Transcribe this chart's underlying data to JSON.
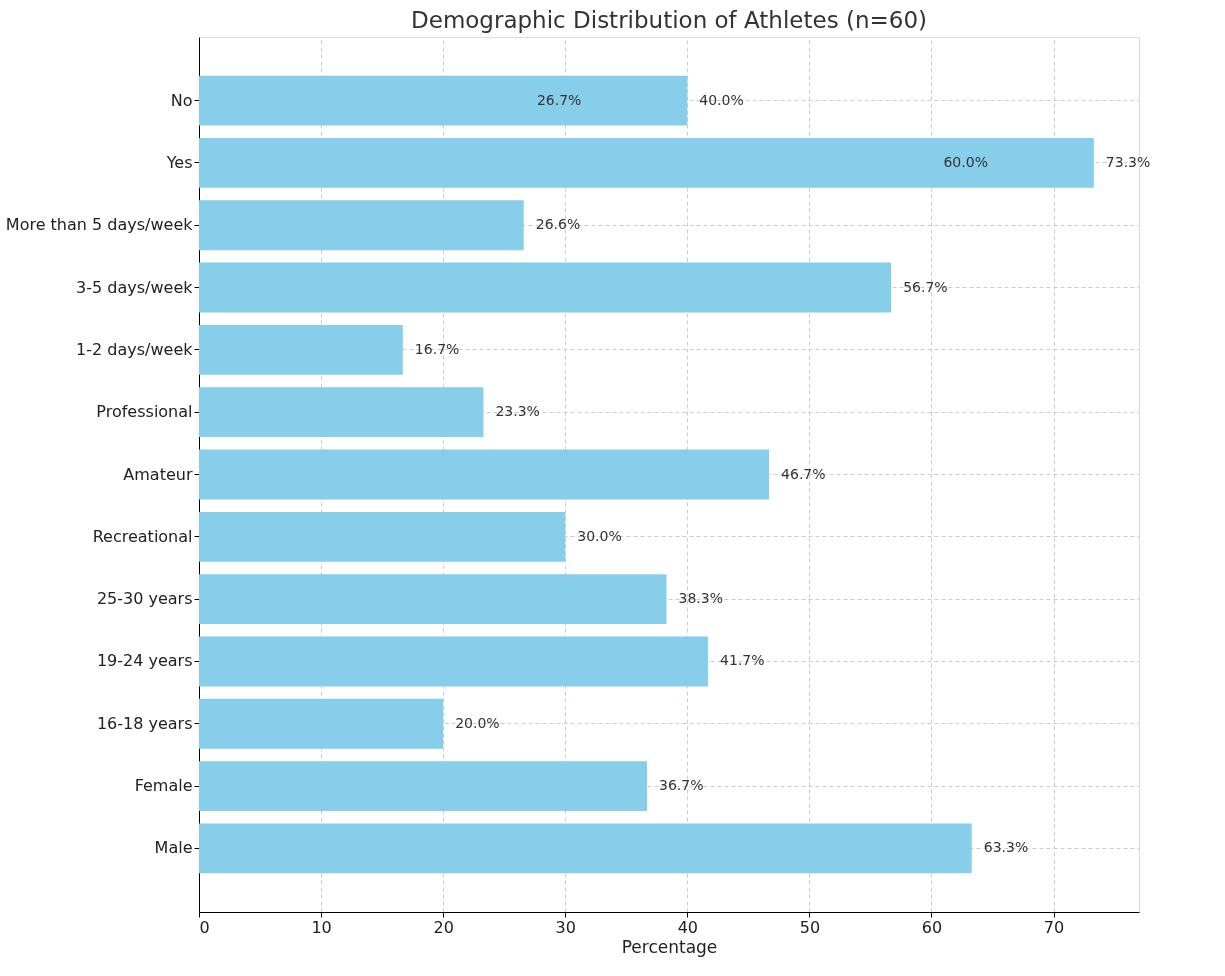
{
  "chart_data": {
    "type": "bar",
    "orientation": "horizontal",
    "title": "Demographic Distribution of Athletes (n=60)",
    "xlabel": "Percentage",
    "categories": [
      "No",
      "Yes",
      "More than 5 days/week",
      "3-5 days/week",
      "1-2 days/week",
      "Professional",
      "Amateur",
      "Recreational",
      "25-30 years",
      "19-24 years",
      "16-18 years",
      "Female",
      "Male"
    ],
    "values": [
      40.0,
      73.3,
      26.6,
      56.7,
      16.7,
      23.3,
      46.7,
      30.0,
      38.3,
      41.7,
      20.0,
      36.7,
      63.3
    ],
    "value_labels": [
      "40.0%",
      "73.3%",
      "26.6%",
      "56.7%",
      "16.7%",
      "23.3%",
      "46.7%",
      "30.0%",
      "38.3%",
      "41.7%",
      "20.0%",
      "36.7%",
      "63.3%"
    ],
    "color": "#87ceeb",
    "xlim": [
      0,
      77
    ],
    "xticks": [
      0,
      10,
      20,
      30,
      40,
      50,
      60,
      70
    ],
    "grid": true,
    "annotations": [
      {
        "text": "26.7%",
        "x": 26.7,
        "y": "No"
      },
      {
        "text": "60.0%",
        "x": 60.0,
        "y": "Yes"
      }
    ]
  }
}
